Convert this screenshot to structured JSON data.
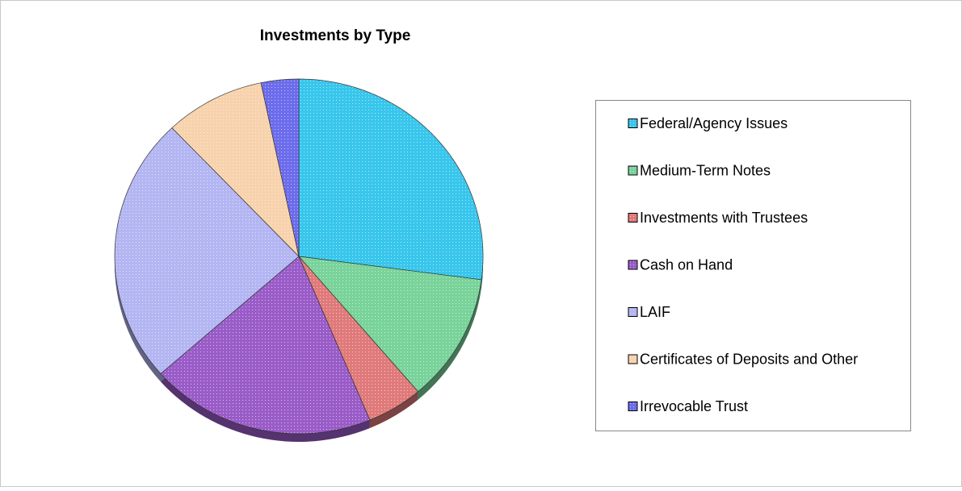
{
  "chart_data": {
    "type": "pie",
    "title": "Investments by Type",
    "categories": [
      "Federal/Agency Issues",
      "Medium-Term Notes",
      "Investments with Trustees",
      "Cash on Hand",
      "LAIF",
      "Certificates of Deposits and Other",
      "Irrevocable Trust"
    ],
    "values": [
      27.1,
      11.7,
      4.9,
      19.8,
      24.4,
      8.8,
      3.3
    ],
    "colors": [
      "#38c6ec",
      "#79d39a",
      "#e07a7a",
      "#9a5cc8",
      "#b3b6f2",
      "#f7d2ac",
      "#6c6cec"
    ],
    "legend": "right"
  }
}
